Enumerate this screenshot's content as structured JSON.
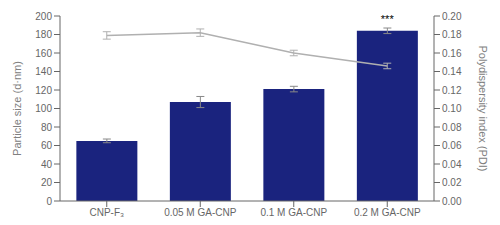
{
  "chart_data": {
    "type": "bar",
    "categories": [
      "CNP-F₃",
      "0.05 M GA-CNP",
      "0.1 M GA-CNP",
      "0.2 M GA-CNP"
    ],
    "series": [
      {
        "type": "bar",
        "color": "#1a237e",
        "values": [
          65,
          107,
          121,
          184
        ],
        "errors": [
          2,
          6,
          3,
          3
        ]
      },
      {
        "type": "line",
        "axis": "y2",
        "color": "#b0b0b0",
        "values": [
          0.179,
          0.182,
          0.16,
          0.146
        ],
        "errors": [
          0.004,
          0.004,
          0.003,
          0.003
        ]
      }
    ],
    "ylabel": "Particle size (d·nm)",
    "y2label": "Polydispersity index (PDI)",
    "ylim": [
      0,
      200
    ],
    "yticks": [
      0,
      20,
      40,
      60,
      80,
      100,
      120,
      140,
      160,
      180,
      200
    ],
    "y2lim": [
      0,
      0.2
    ],
    "y2ticks": [
      {
        "value": 0,
        "label": "0.00"
      },
      0.02,
      0.04,
      0.06,
      0.08,
      {
        "value": 0.1,
        "label": "0.10"
      },
      0.12,
      0.14,
      0.16,
      0.18,
      {
        "value": 0.2,
        "label": "0.20"
      }
    ],
    "annotations": [
      {
        "text": "***",
        "category": "0.2 M GA-CNP"
      }
    ]
  }
}
